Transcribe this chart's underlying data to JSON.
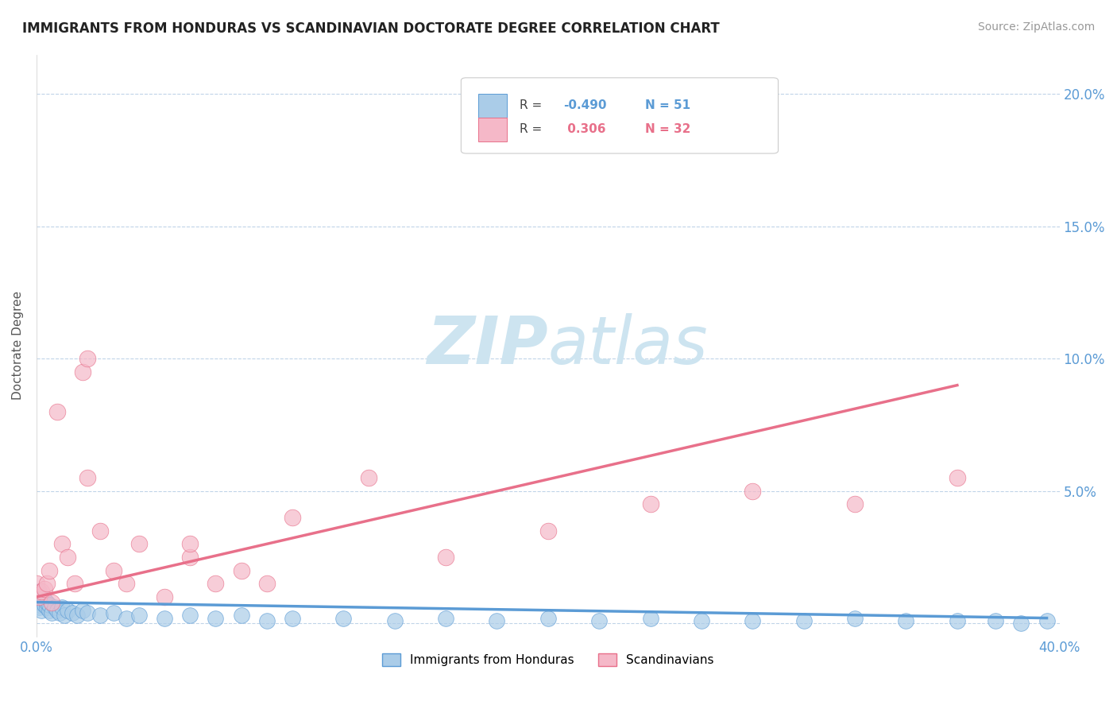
{
  "title": "IMMIGRANTS FROM HONDURAS VS SCANDINAVIAN DOCTORATE DEGREE CORRELATION CHART",
  "source": "Source: ZipAtlas.com",
  "ylabel": "Doctorate Degree",
  "ytick_labels": [
    "",
    "5.0%",
    "10.0%",
    "15.0%",
    "20.0%"
  ],
  "ytick_values": [
    0.0,
    0.05,
    0.1,
    0.15,
    0.2
  ],
  "xlim": [
    0.0,
    0.4
  ],
  "ylim": [
    -0.005,
    0.215
  ],
  "color_blue": "#aacce8",
  "color_pink": "#f5b8c8",
  "color_blue_dark": "#5b9bd5",
  "color_pink_dark": "#e8708a",
  "color_line_blue": "#5b9bd5",
  "color_line_pink": "#e8708a",
  "watermark_color": "#cde4f0",
  "honduras_x": [
    0.0,
    0.0,
    0.001,
    0.001,
    0.001,
    0.001,
    0.002,
    0.002,
    0.003,
    0.003,
    0.004,
    0.004,
    0.005,
    0.005,
    0.006,
    0.007,
    0.008,
    0.009,
    0.01,
    0.011,
    0.012,
    0.014,
    0.016,
    0.018,
    0.02,
    0.025,
    0.03,
    0.035,
    0.04,
    0.05,
    0.06,
    0.07,
    0.08,
    0.09,
    0.1,
    0.12,
    0.14,
    0.16,
    0.18,
    0.2,
    0.22,
    0.24,
    0.26,
    0.28,
    0.3,
    0.32,
    0.34,
    0.36,
    0.375,
    0.385,
    0.395
  ],
  "honduras_y": [
    0.01,
    0.008,
    0.012,
    0.007,
    0.009,
    0.006,
    0.008,
    0.005,
    0.007,
    0.009,
    0.006,
    0.008,
    0.005,
    0.007,
    0.004,
    0.006,
    0.005,
    0.004,
    0.006,
    0.003,
    0.005,
    0.004,
    0.003,
    0.005,
    0.004,
    0.003,
    0.004,
    0.002,
    0.003,
    0.002,
    0.003,
    0.002,
    0.003,
    0.001,
    0.002,
    0.002,
    0.001,
    0.002,
    0.001,
    0.002,
    0.001,
    0.002,
    0.001,
    0.001,
    0.001,
    0.002,
    0.001,
    0.001,
    0.001,
    0.0,
    0.001
  ],
  "scand_x": [
    0.0,
    0.001,
    0.002,
    0.003,
    0.004,
    0.005,
    0.006,
    0.008,
    0.01,
    0.012,
    0.015,
    0.018,
    0.02,
    0.025,
    0.03,
    0.035,
    0.04,
    0.05,
    0.06,
    0.07,
    0.08,
    0.09,
    0.1,
    0.13,
    0.16,
    0.2,
    0.24,
    0.28,
    0.32,
    0.36,
    0.02,
    0.06
  ],
  "scand_y": [
    0.015,
    0.01,
    0.012,
    0.013,
    0.015,
    0.02,
    0.008,
    0.08,
    0.03,
    0.025,
    0.015,
    0.095,
    0.055,
    0.035,
    0.02,
    0.015,
    0.03,
    0.01,
    0.025,
    0.015,
    0.02,
    0.015,
    0.04,
    0.055,
    0.025,
    0.035,
    0.045,
    0.05,
    0.045,
    0.055,
    0.1,
    0.03
  ],
  "honduras_trendline_x": [
    0.0,
    0.395
  ],
  "honduras_trendline_y": [
    0.008,
    0.002
  ],
  "scand_trendline_x": [
    0.0,
    0.36
  ],
  "scand_trendline_y": [
    0.01,
    0.09
  ]
}
